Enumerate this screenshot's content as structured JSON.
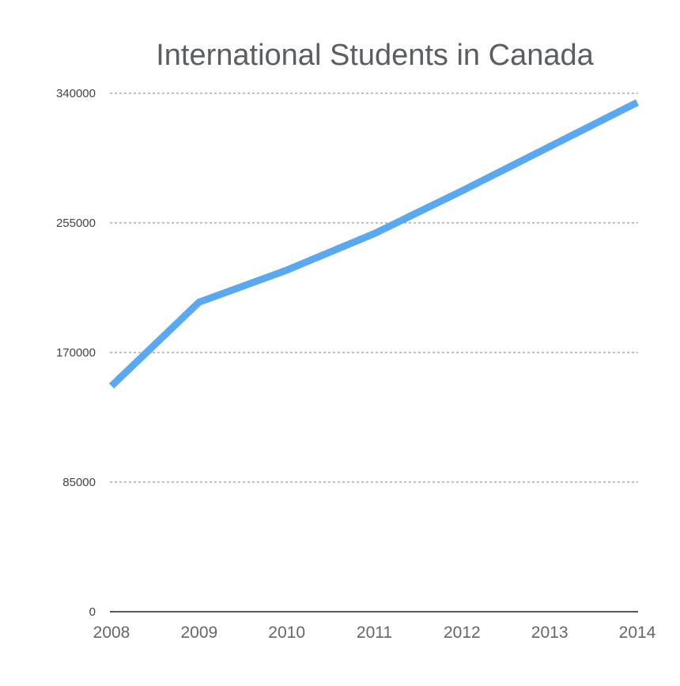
{
  "chart_data": {
    "type": "line",
    "title": "International Students in Canada",
    "xlabel": "",
    "ylabel": "",
    "categories": [
      "2008",
      "2009",
      "2010",
      "2011",
      "2012",
      "2013",
      "2014"
    ],
    "series": [
      {
        "values": [
          148000,
          203000,
          224000,
          248000,
          276000,
          305000,
          334000
        ],
        "color": "#5aa9f0"
      }
    ],
    "y_ticks": [
      "0",
      "85000",
      "170000",
      "255000",
      "340000"
    ],
    "ylim": [
      0,
      340000
    ],
    "grid": true
  }
}
